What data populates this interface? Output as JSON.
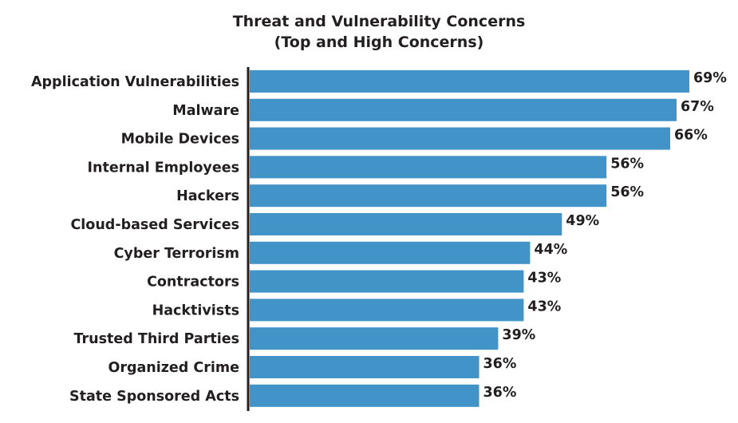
{
  "chart_data": {
    "type": "bar",
    "orientation": "horizontal",
    "title": "Threat and Vulnerability Concerns",
    "subtitle": "(Top and High Concerns)",
    "categories": [
      "Application Vulnerabilities",
      "Malware",
      "Mobile Devices",
      "Internal Employees",
      "Hackers",
      "Cloud-based Services",
      "Cyber Terrorism",
      "Contractors",
      "Hacktivists",
      "Trusted Third Parties",
      "Organized Crime",
      "State Sponsored Acts"
    ],
    "values": [
      69,
      67,
      66,
      56,
      56,
      49,
      44,
      43,
      43,
      39,
      36,
      36
    ],
    "value_labels": [
      "69%",
      "67%",
      "66%",
      "56%",
      "56%",
      "49%",
      "44%",
      "43%",
      "43%",
      "39%",
      "36%",
      "36%"
    ],
    "xlim": [
      0,
      69
    ],
    "grid": false,
    "legend": "none",
    "bar_color": "#4193c8",
    "axis_color": "#231f20",
    "text_color": "#231f20"
  }
}
